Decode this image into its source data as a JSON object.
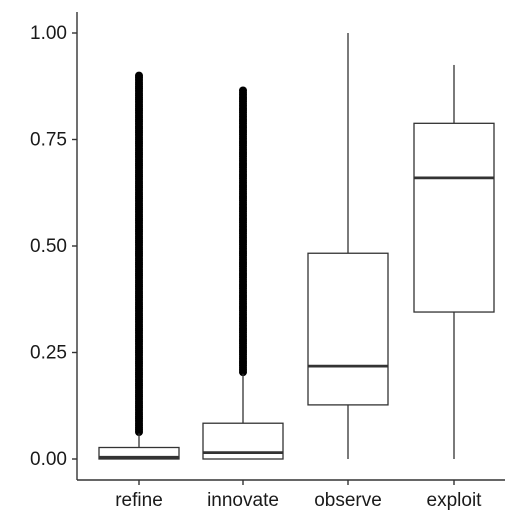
{
  "chart_data": {
    "type": "boxplot",
    "title": "",
    "xlabel": "",
    "ylabel": "",
    "ylim": [
      -0.05,
      1.03
    ],
    "grid": false,
    "yticks": [
      0.0,
      0.25,
      0.5,
      0.75,
      1.0
    ],
    "ytick_labels": [
      "0.00",
      "0.25",
      "0.50",
      "0.75",
      "1.00"
    ],
    "categories": [
      "refine",
      "innovate",
      "observe",
      "exploit"
    ],
    "boxes": [
      {
        "category": "refine",
        "whisker_low": 0.0,
        "q1": 0.0,
        "median": 0.004,
        "q3": 0.027,
        "whisker_high": 0.06,
        "outlier_range": [
          0.06,
          0.9
        ]
      },
      {
        "category": "innovate",
        "whisker_low": 0.0,
        "q1": 0.0,
        "median": 0.015,
        "q3": 0.084,
        "whisker_high": 0.2,
        "outlier_range": [
          0.2,
          0.865
        ]
      },
      {
        "category": "observe",
        "whisker_low": 0.0,
        "q1": 0.127,
        "median": 0.218,
        "q3": 0.483,
        "whisker_high": 1.0,
        "outlier_range": null
      },
      {
        "category": "exploit",
        "whisker_low": 0.0,
        "q1": 0.345,
        "median": 0.66,
        "q3": 0.788,
        "whisker_high": 0.925,
        "outlier_range": null
      }
    ],
    "outlier_color": "#000000",
    "box_fill": "#ffffff",
    "line_color": "#333333"
  }
}
